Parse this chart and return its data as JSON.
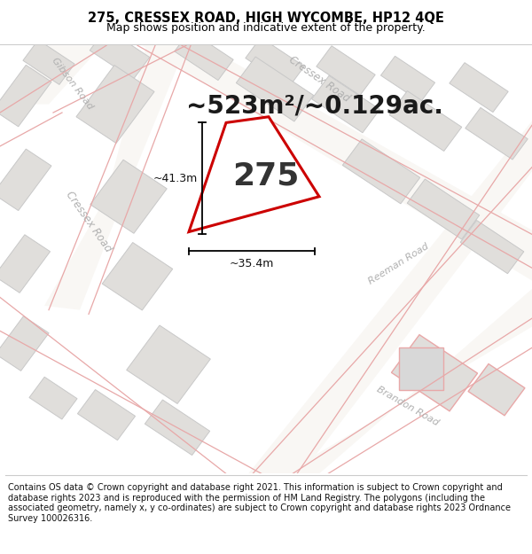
{
  "title": "275, CRESSEX ROAD, HIGH WYCOMBE, HP12 4QE",
  "subtitle": "Map shows position and indicative extent of the property.",
  "area_text": "~523m²/~0.129ac.",
  "plot_number": "275",
  "dim_width": "~35.4m",
  "dim_height": "~41.3m",
  "footer": "Contains OS data © Crown copyright and database right 2021. This information is subject to Crown copyright and database rights 2023 and is reproduced with the permission of HM Land Registry. The polygons (including the associated geometry, namely x, y co-ordinates) are subject to Crown copyright and database rights 2023 Ordnance Survey 100026316.",
  "map_bg": "#f2f0ec",
  "building_color": "#e0dedb",
  "building_stroke": "#c8c8c8",
  "road_line_color": "#e8a8a8",
  "road_fill_color": "#f9f7f4",
  "highlight_color": "#cc0000",
  "label_color": "#b0b0b0",
  "title_fontsize": 10.5,
  "subtitle_fontsize": 9,
  "area_fontsize": 20,
  "plot_num_fontsize": 26,
  "footer_fontsize": 7,
  "dim_fontsize": 9
}
